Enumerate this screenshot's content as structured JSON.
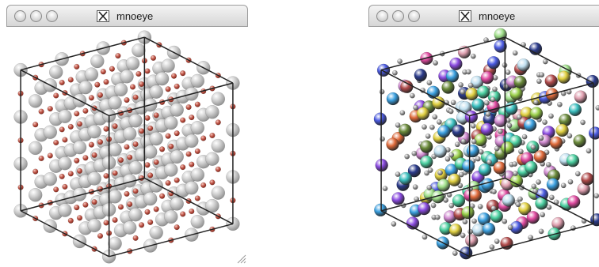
{
  "windows": [
    {
      "title": "mnoeye",
      "x_label": "X"
    },
    {
      "title": "mnoeye",
      "x_label": "X"
    }
  ]
}
